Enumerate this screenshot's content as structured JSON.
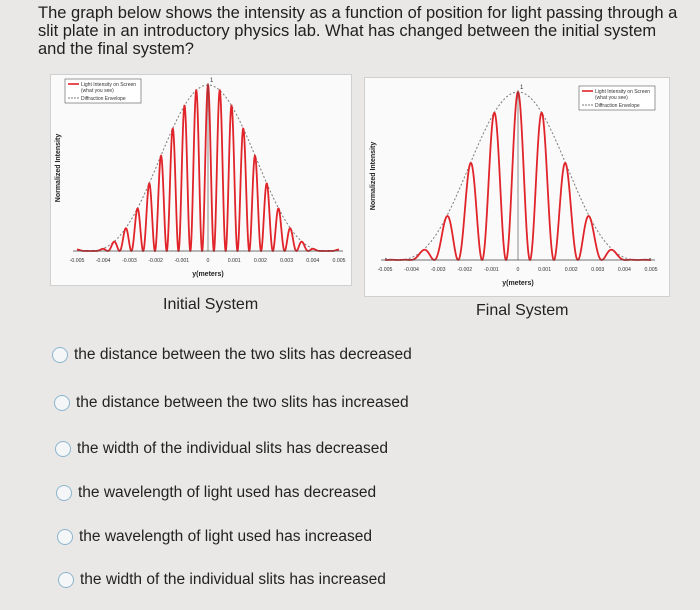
{
  "question": "The graph below shows the intensity as a function of position for light passing through a slit plate in an introductory physics lab. What has changed between the initial system and the final system?",
  "figures": [
    {
      "caption": "Initial System",
      "legend": [
        "Light Intensity on Screen",
        "(what you see)",
        "Diffraction Envelope"
      ],
      "xlabel": "y(meters)",
      "ylabel": "Normalized Intensity",
      "xticks": [
        "-0.005",
        "-0.004",
        "-0.003",
        "-0.002",
        "-0.001",
        "0",
        "0.001",
        "0.002",
        "0.003",
        "0.004",
        "0.005"
      ],
      "peak_label": "1"
    },
    {
      "caption": "Final System",
      "legend": [
        "Light Intensity on Screen",
        "(what you see)",
        "Diffraction Envelope"
      ],
      "xlabel": "y(meters)",
      "ylabel": "Normalized Intensity",
      "xticks": [
        "-0.005",
        "-0.004",
        "-0.003",
        "-0.002",
        "-0.001",
        "0",
        "0.001",
        "0.002",
        "0.003",
        "0.004",
        "0.005"
      ],
      "peak_label": "1"
    }
  ],
  "options": [
    "the distance between the two slits has decreased",
    "the distance between the two slits has increased",
    "the width of the individual slits has decreased",
    "the wavelength of light used has decreased",
    "the wavelength of light used has increased",
    "the width of the individual slits has increased"
  ],
  "colors": {
    "curve": "#e0242a",
    "envelope": "#7a7a7a",
    "radio_border": "#8bb6cf"
  },
  "chart_data": [
    {
      "type": "line",
      "title": "",
      "xlabel": "y(meters)",
      "ylabel": "Normalized Intensity",
      "xlim": [
        -0.005,
        0.005
      ],
      "ylim": [
        0,
        1
      ],
      "series": [
        {
          "name": "Light Intensity on Screen (what you see)",
          "fringe_spacing_m": 0.00045
        },
        {
          "name": "Diffraction Envelope",
          "first_minimum_m": 0.0045
        }
      ],
      "legend": "top-left"
    },
    {
      "type": "line",
      "title": "",
      "xlabel": "y(meters)",
      "ylabel": "Normalized Intensity",
      "xlim": [
        -0.005,
        0.005
      ],
      "ylim": [
        0,
        1
      ],
      "series": [
        {
          "name": "Light Intensity on Screen (what you see)",
          "fringe_spacing_m": 0.0009
        },
        {
          "name": "Diffraction Envelope",
          "first_minimum_m": 0.0045
        }
      ],
      "legend": "top-right"
    }
  ]
}
